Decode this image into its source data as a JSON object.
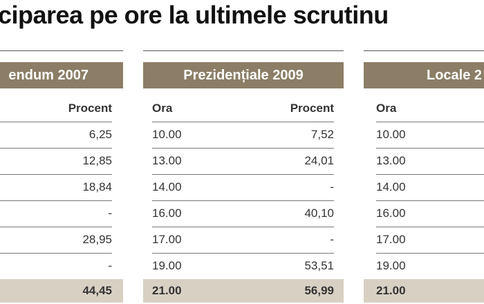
{
  "title": "ciparea pe ore la ultimele scrutinu",
  "tables": [
    {
      "header": "endum 2007",
      "columns": [
        "Procent"
      ],
      "rows": [
        [
          "6,25"
        ],
        [
          "12,85"
        ],
        [
          "18,84"
        ],
        [
          "-"
        ],
        [
          "28,95"
        ],
        [
          "-"
        ]
      ],
      "total": [
        "44,45"
      ]
    },
    {
      "header": "Prezidențiale 2009",
      "columns": [
        "Ora",
        "Procent"
      ],
      "rows": [
        [
          "10.00",
          "7,52"
        ],
        [
          "13.00",
          "24,01"
        ],
        [
          "14.00",
          "-"
        ],
        [
          "16.00",
          "40,10"
        ],
        [
          "17.00",
          "-"
        ],
        [
          "19.00",
          "53,51"
        ]
      ],
      "total": [
        "21.00",
        "56,99"
      ]
    },
    {
      "header": "Locale 2",
      "columns": [
        "Ora"
      ],
      "rows": [
        [
          "10.00"
        ],
        [
          "13.00"
        ],
        [
          "14.00"
        ],
        [
          "16.00"
        ],
        [
          "17.00"
        ],
        [
          "19.00"
        ]
      ],
      "total": [
        "21.00"
      ]
    }
  ]
}
